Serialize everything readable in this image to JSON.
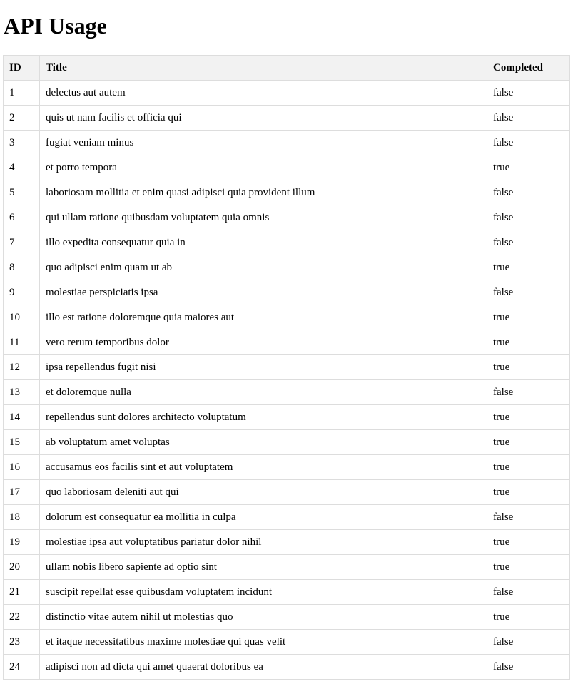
{
  "page": {
    "title": "API Usage"
  },
  "table": {
    "headers": {
      "id": "ID",
      "title": "Title",
      "completed": "Completed"
    },
    "rows": [
      {
        "id": "1",
        "title": "delectus aut autem",
        "completed": "false"
      },
      {
        "id": "2",
        "title": "quis ut nam facilis et officia qui",
        "completed": "false"
      },
      {
        "id": "3",
        "title": "fugiat veniam minus",
        "completed": "false"
      },
      {
        "id": "4",
        "title": "et porro tempora",
        "completed": "true"
      },
      {
        "id": "5",
        "title": "laboriosam mollitia et enim quasi adipisci quia provident illum",
        "completed": "false"
      },
      {
        "id": "6",
        "title": "qui ullam ratione quibusdam voluptatem quia omnis",
        "completed": "false"
      },
      {
        "id": "7",
        "title": "illo expedita consequatur quia in",
        "completed": "false"
      },
      {
        "id": "8",
        "title": "quo adipisci enim quam ut ab",
        "completed": "true"
      },
      {
        "id": "9",
        "title": "molestiae perspiciatis ipsa",
        "completed": "false"
      },
      {
        "id": "10",
        "title": "illo est ratione doloremque quia maiores aut",
        "completed": "true"
      },
      {
        "id": "11",
        "title": "vero rerum temporibus dolor",
        "completed": "true"
      },
      {
        "id": "12",
        "title": "ipsa repellendus fugit nisi",
        "completed": "true"
      },
      {
        "id": "13",
        "title": "et doloremque nulla",
        "completed": "false"
      },
      {
        "id": "14",
        "title": "repellendus sunt dolores architecto voluptatum",
        "completed": "true"
      },
      {
        "id": "15",
        "title": "ab voluptatum amet voluptas",
        "completed": "true"
      },
      {
        "id": "16",
        "title": "accusamus eos facilis sint et aut voluptatem",
        "completed": "true"
      },
      {
        "id": "17",
        "title": "quo laboriosam deleniti aut qui",
        "completed": "true"
      },
      {
        "id": "18",
        "title": "dolorum est consequatur ea mollitia in culpa",
        "completed": "false"
      },
      {
        "id": "19",
        "title": "molestiae ipsa aut voluptatibus pariatur dolor nihil",
        "completed": "true"
      },
      {
        "id": "20",
        "title": "ullam nobis libero sapiente ad optio sint",
        "completed": "true"
      },
      {
        "id": "21",
        "title": "suscipit repellat esse quibusdam voluptatem incidunt",
        "completed": "false"
      },
      {
        "id": "22",
        "title": "distinctio vitae autem nihil ut molestias quo",
        "completed": "true"
      },
      {
        "id": "23",
        "title": "et itaque necessitatibus maxime molestiae qui quas velit",
        "completed": "false"
      },
      {
        "id": "24",
        "title": "adipisci non ad dicta qui amet quaerat doloribus ea",
        "completed": "false"
      }
    ]
  },
  "colors": {
    "header_background": "#f2f2f2",
    "border": "#dddddd",
    "text": "#000000"
  }
}
